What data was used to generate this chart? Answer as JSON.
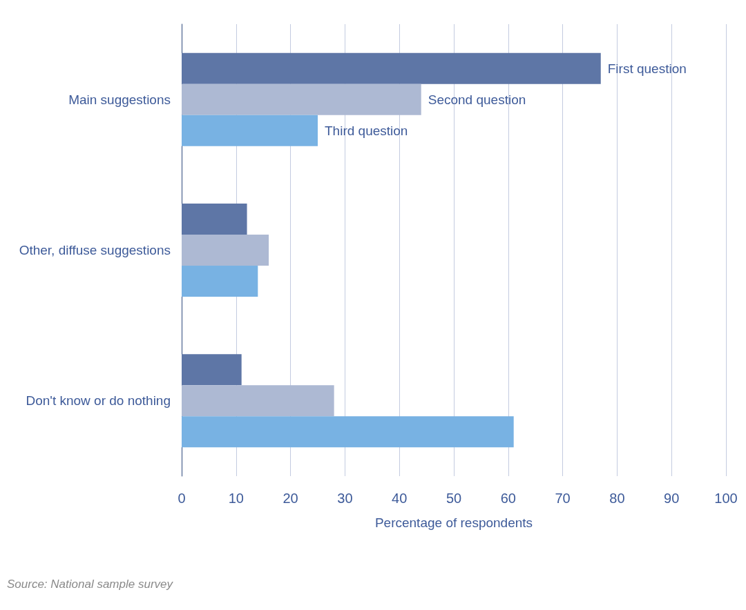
{
  "chart_data": {
    "type": "bar",
    "orientation": "horizontal",
    "xlabel": "Percentage of respondents",
    "categories": [
      "Main suggestions",
      "Other, diffuse suggestions",
      "Don't know or do nothing"
    ],
    "series": [
      {
        "name": "First question",
        "color": "#5e76a6",
        "values": [
          77,
          12,
          11
        ]
      },
      {
        "name": "Second question",
        "color": "#adb9d3",
        "values": [
          44,
          16,
          28
        ]
      },
      {
        "name": "Third question",
        "color": "#78b2e3",
        "values": [
          25,
          14,
          61
        ]
      }
    ],
    "xlim": [
      0,
      100
    ],
    "xticks": [
      0,
      10,
      20,
      30,
      40,
      50,
      60,
      70,
      80,
      90,
      100
    ],
    "grid": "x",
    "legend": false,
    "annotations": [
      "Source: National sample survey"
    ]
  }
}
